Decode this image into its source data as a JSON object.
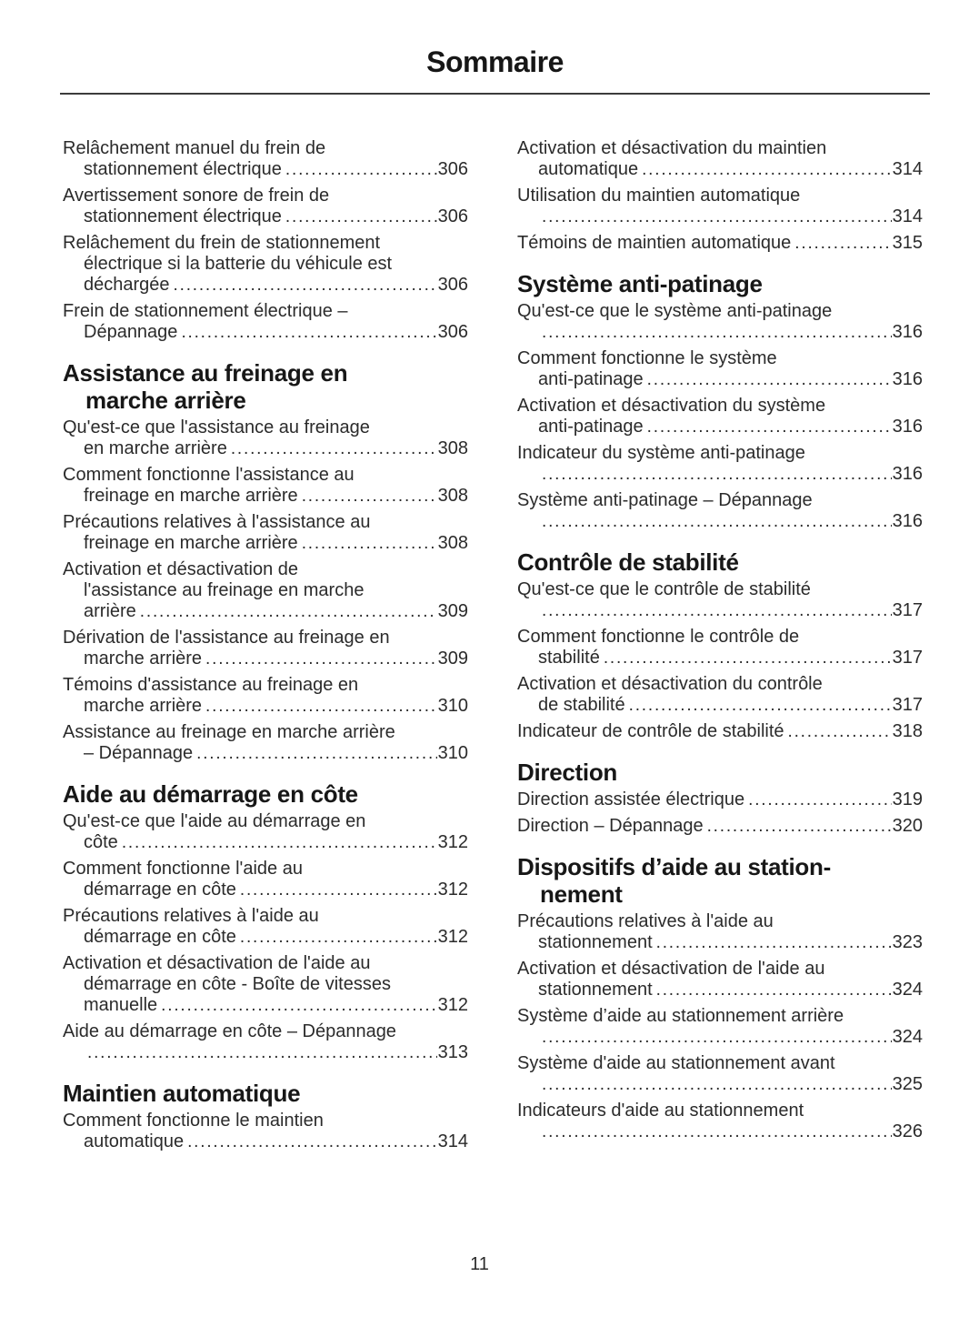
{
  "page": {
    "title": "Sommaire",
    "page_number": "11"
  },
  "toc": {
    "left": [
      {
        "heading_lines": [],
        "entries": [
          {
            "lines": [
              "Relâchement manuel du frein de",
              "stationnement électrique"
            ],
            "page": "306"
          },
          {
            "lines": [
              "Avertissement sonore de frein de",
              "stationnement électrique"
            ],
            "page": "306"
          },
          {
            "lines": [
              "Relâchement du frein de stationnement",
              "électrique si la batterie du véhicule est",
              "déchargée"
            ],
            "page": "306"
          },
          {
            "lines": [
              "Frein de stationnement électrique –",
              "Dépannage"
            ],
            "page": "306"
          }
        ]
      },
      {
        "heading_lines": [
          "Assistance au freinage en",
          "marche arrière"
        ],
        "entries": [
          {
            "lines": [
              "Qu'est-ce que l'assistance au freinage",
              "en marche arrière"
            ],
            "page": "308"
          },
          {
            "lines": [
              "Comment fonctionne l'assistance au",
              "freinage en marche arrière"
            ],
            "page": "308"
          },
          {
            "lines": [
              "Précautions relatives à l'assistance au",
              "freinage en marche arrière"
            ],
            "page": "308"
          },
          {
            "lines": [
              "Activation et désactivation de",
              "l'assistance au freinage en marche",
              "arrière"
            ],
            "page": "309"
          },
          {
            "lines": [
              "Dérivation de l'assistance au freinage en",
              "marche arrière"
            ],
            "page": "309"
          },
          {
            "lines": [
              "Témoins d'assistance au freinage en",
              "marche arrière"
            ],
            "page": "310"
          },
          {
            "lines": [
              "Assistance au freinage en marche arrière",
              "– Dépannage"
            ],
            "page": "310"
          }
        ]
      },
      {
        "heading_lines": [
          "Aide au démarrage en côte"
        ],
        "entries": [
          {
            "lines": [
              "Qu'est-ce que l'aide au démarrage en",
              "côte"
            ],
            "page": "312"
          },
          {
            "lines": [
              "Comment fonctionne l'aide au",
              "démarrage en côte"
            ],
            "page": "312"
          },
          {
            "lines": [
              "Précautions relatives à l'aide au",
              "démarrage en côte"
            ],
            "page": "312"
          },
          {
            "lines": [
              "Activation et désactivation de l'aide au",
              "démarrage en côte - Boîte de vitesses",
              "manuelle"
            ],
            "page": "312"
          },
          {
            "lines": [
              "Aide au démarrage en côte – Dépannage",
              ""
            ],
            "page": "313"
          }
        ]
      },
      {
        "heading_lines": [
          "Maintien automatique"
        ],
        "entries": [
          {
            "lines": [
              "Comment fonctionne le maintien",
              "automatique"
            ],
            "page": "314"
          }
        ]
      }
    ],
    "right": [
      {
        "heading_lines": [],
        "entries": [
          {
            "lines": [
              "Activation et désactivation du maintien",
              "automatique"
            ],
            "page": "314"
          },
          {
            "lines": [
              "Utilisation du maintien automatique",
              ""
            ],
            "page": "314"
          },
          {
            "lines": [
              "Témoins de maintien automatique"
            ],
            "page": "315"
          }
        ]
      },
      {
        "heading_lines": [
          "Système anti-patinage"
        ],
        "entries": [
          {
            "lines": [
              "Qu'est-ce que le système anti-patinage",
              ""
            ],
            "page": "316"
          },
          {
            "lines": [
              "Comment fonctionne le système",
              "anti-patinage"
            ],
            "page": "316"
          },
          {
            "lines": [
              "Activation et désactivation du système",
              "anti-patinage"
            ],
            "page": "316"
          },
          {
            "lines": [
              "Indicateur du système anti-patinage",
              ""
            ],
            "page": "316"
          },
          {
            "lines": [
              "Système anti-patinage – Dépannage",
              ""
            ],
            "page": "316"
          }
        ]
      },
      {
        "heading_lines": [
          "Contrôle de stabilité"
        ],
        "entries": [
          {
            "lines": [
              "Qu'est-ce que le contrôle de stabilité",
              ""
            ],
            "page": "317"
          },
          {
            "lines": [
              "Comment fonctionne le contrôle de",
              "stabilité"
            ],
            "page": "317"
          },
          {
            "lines": [
              "Activation et désactivation du contrôle",
              "de stabilité"
            ],
            "page": "317"
          },
          {
            "lines": [
              "Indicateur de contrôle de stabilité"
            ],
            "page": "318"
          }
        ]
      },
      {
        "heading_lines": [
          "Direction"
        ],
        "entries": [
          {
            "lines": [
              "Direction assistée électrique"
            ],
            "page": "319"
          },
          {
            "lines": [
              "Direction – Dépannage"
            ],
            "page": "320"
          }
        ]
      },
      {
        "heading_lines": [
          "Dispositifs d’aide au station-",
          "nement"
        ],
        "entries": [
          {
            "lines": [
              "Précautions relatives à l'aide au",
              "stationnement"
            ],
            "page": "323"
          },
          {
            "lines": [
              "Activation et désactivation de l'aide au",
              "stationnement"
            ],
            "page": "324"
          },
          {
            "lines": [
              "Système d’aide au stationnement arrière",
              ""
            ],
            "page": "324"
          },
          {
            "lines": [
              "Système d'aide au stationnement avant",
              ""
            ],
            "page": "325"
          },
          {
            "lines": [
              "Indicateurs d'aide au stationnement",
              ""
            ],
            "page": "326"
          }
        ]
      }
    ]
  }
}
